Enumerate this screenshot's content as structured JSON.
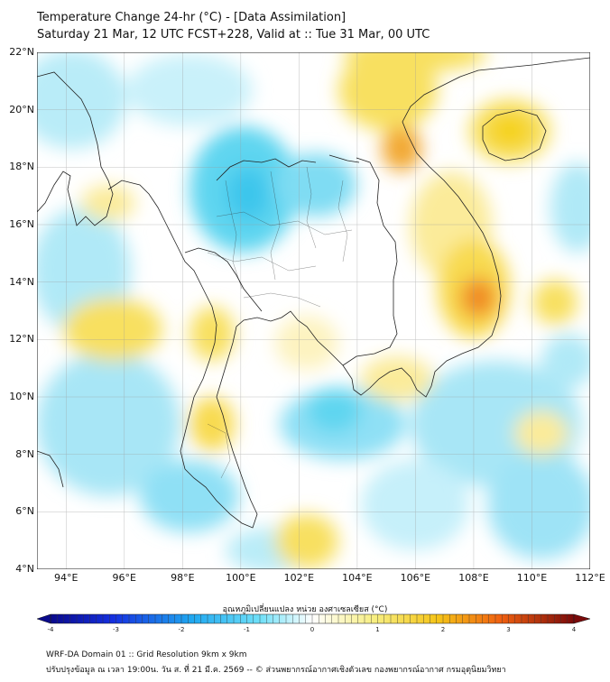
{
  "header": {
    "title_line1": "Temperature Change 24-hr (°C) - [Data Assimilation]",
    "title_line2": "Saturday 21 Mar, 12 UTC FCST+228, Valid at :: Tue 31 Mar, 00 UTC"
  },
  "map": {
    "lon_range": [
      93,
      112
    ],
    "lat_range": [
      4,
      22
    ],
    "lat_ticks": [
      "22°N",
      "20°N",
      "18°N",
      "16°N",
      "14°N",
      "12°N",
      "10°N",
      "8°N",
      "6°N",
      "4°N"
    ],
    "lon_ticks": [
      "94°E",
      "96°E",
      "98°E",
      "100°E",
      "102°E",
      "104°E",
      "106°E",
      "108°E",
      "110°E",
      "112°E"
    ],
    "grid": true,
    "colors": {
      "cold": "#2fc8ee",
      "warm": "#f5d21a",
      "hot": "#f08a10",
      "neutral": "#ffffff",
      "land_line": "#222222"
    }
  },
  "colorbar": {
    "label": "อุณหภูมิเปลี่ยนแปลง หน่วย องศาเซลเซียส (°C)",
    "min": -4,
    "max": 4,
    "ticks": [
      "-4",
      "-3",
      "-2",
      "-1",
      "0",
      "1",
      "2",
      "3",
      "4"
    ]
  },
  "footer": {
    "line1": "WRF-DA Domain 01 :: Grid Resolution 9km x 9km",
    "line2": "ปรับปรุงข้อมูล ณ เวลา 19:00น. วัน ส. ที่ 21 มี.ค. 2569 -- © ส่วนพยากรณ์อากาศเชิงตัวเลข กองพยากรณ์อากาศ กรมอุตุนิยมวิทยา"
  }
}
